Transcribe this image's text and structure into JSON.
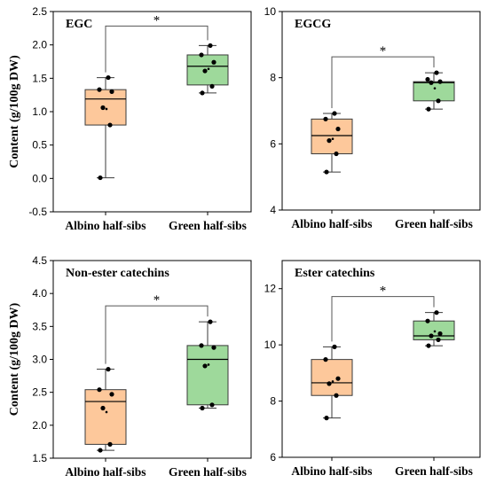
{
  "figure": {
    "ylabel": "Content (g/100g DW)",
    "colors": {
      "albino": "#FDC89B",
      "green": "#9ED99B",
      "edge": "#3a3a3a"
    }
  },
  "chart_data": [
    {
      "type": "box",
      "title": "EGC",
      "ylabel": "Content (g/100g DW)",
      "categories": [
        "Albino half-sibs",
        "Green half-sibs"
      ],
      "ylim": [
        -0.5,
        2.5
      ],
      "yticks": [
        -0.5,
        0.0,
        0.5,
        1.0,
        1.5,
        2.0,
        2.5
      ],
      "ytick_labels": [
        "-0.5",
        "0.0",
        "0.5",
        "1.0",
        "1.5",
        "2.0",
        "2.5"
      ],
      "boxes": [
        {
          "min": 0.01,
          "q1": 0.8,
          "median": 1.19,
          "q3": 1.33,
          "max": 1.51,
          "mean": 1.04,
          "points": [
            0.01,
            0.8,
            1.06,
            1.3,
            1.33,
            1.51
          ]
        },
        {
          "min": 1.28,
          "q1": 1.4,
          "median": 1.68,
          "q3": 1.85,
          "max": 1.99,
          "mean": 1.64,
          "points": [
            1.28,
            1.38,
            1.61,
            1.74,
            1.85,
            1.99
          ]
        }
      ],
      "significance": "*"
    },
    {
      "type": "box",
      "title": "EGCG",
      "ylabel": "",
      "categories": [
        "Albino half-sibs",
        "Green half-sibs"
      ],
      "ylim": [
        4,
        10
      ],
      "yticks": [
        4,
        6,
        8,
        10
      ],
      "ytick_labels": [
        "4",
        "6",
        "8",
        "10"
      ],
      "boxes": [
        {
          "min": 5.15,
          "q1": 5.7,
          "median": 6.25,
          "q3": 6.75,
          "max": 6.92,
          "mean": 6.15,
          "points": [
            5.15,
            5.7,
            6.1,
            6.45,
            6.75,
            6.92
          ]
        },
        {
          "min": 7.05,
          "q1": 7.3,
          "median": 7.85,
          "q3": 7.88,
          "max": 8.15,
          "mean": 7.68,
          "points": [
            7.05,
            7.3,
            7.85,
            7.88,
            7.95,
            8.15
          ]
        }
      ],
      "significance": "*"
    },
    {
      "type": "box",
      "title": "Non-ester catechins",
      "ylabel": "Content (g/100g DW)",
      "categories": [
        "Albino half-sibs",
        "Green half-sibs"
      ],
      "ylim": [
        1.5,
        4.5
      ],
      "yticks": [
        1.5,
        2.0,
        2.5,
        3.0,
        3.5,
        4.0,
        4.5
      ],
      "ytick_labels": [
        "1.5",
        "2.0",
        "2.5",
        "3.0",
        "3.5",
        "4.0",
        "4.5"
      ],
      "boxes": [
        {
          "min": 1.62,
          "q1": 1.71,
          "median": 2.36,
          "q3": 2.54,
          "max": 2.85,
          "mean": 2.2,
          "points": [
            1.62,
            1.71,
            2.26,
            2.47,
            2.54,
            2.85
          ]
        },
        {
          "min": 2.26,
          "q1": 2.31,
          "median": 3.0,
          "q3": 3.21,
          "max": 3.57,
          "mean": 2.92,
          "points": [
            2.26,
            2.31,
            2.9,
            3.18,
            3.21,
            3.57
          ]
        }
      ],
      "significance": "*"
    },
    {
      "type": "box",
      "title": "Ester catechins",
      "ylabel": "",
      "categories": [
        "Albino half-sibs",
        "Green half-sibs"
      ],
      "ylim": [
        6,
        13
      ],
      "yticks": [
        6,
        8,
        10,
        12
      ],
      "ytick_labels": [
        "6",
        "8",
        "10",
        "12"
      ],
      "boxes": [
        {
          "min": 7.4,
          "q1": 8.2,
          "median": 8.65,
          "q3": 9.48,
          "max": 9.93,
          "mean": 8.7,
          "points": [
            7.4,
            8.2,
            8.62,
            8.8,
            9.48,
            9.93
          ]
        },
        {
          "min": 9.97,
          "q1": 10.18,
          "median": 10.32,
          "q3": 10.85,
          "max": 11.15,
          "mean": 10.48,
          "points": [
            9.97,
            10.18,
            10.32,
            10.4,
            10.85,
            11.15
          ]
        }
      ],
      "significance": "*"
    }
  ]
}
